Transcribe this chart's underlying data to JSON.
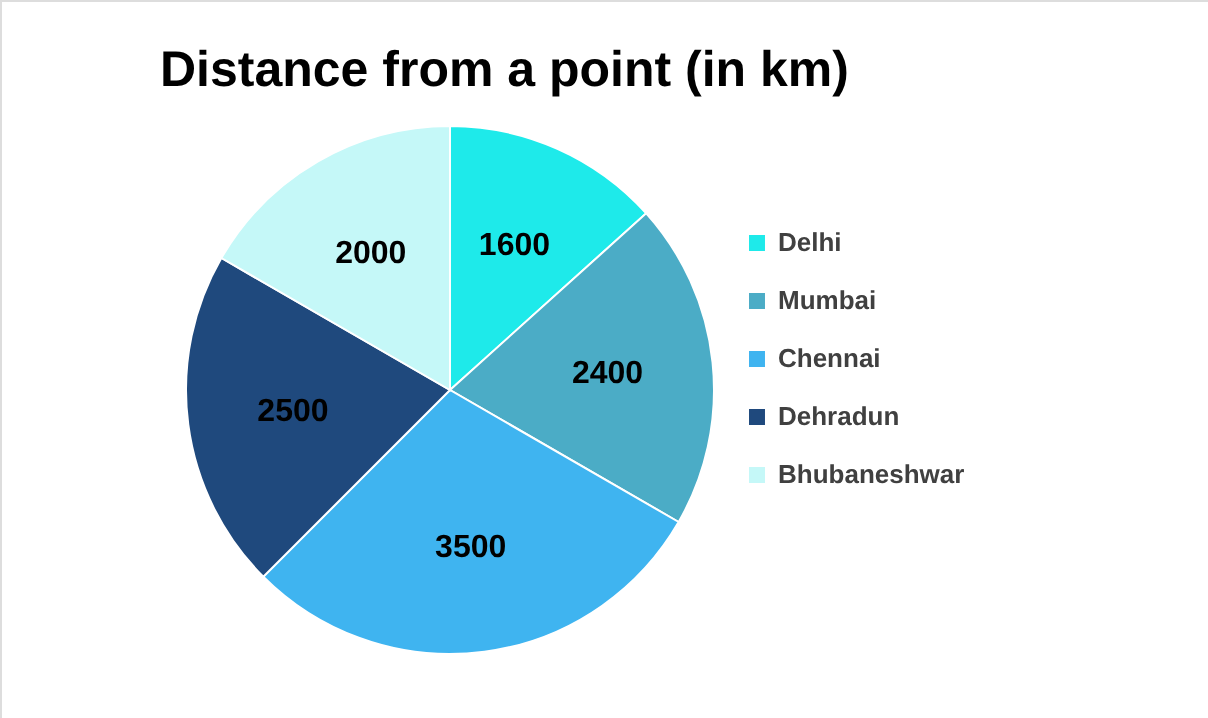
{
  "chart_data": {
    "type": "pie",
    "title": "Distance from a point (in km)",
    "categories": [
      "Delhi",
      "Mumbai",
      "Chennai",
      "Dehradun",
      "Bhubaneshwar"
    ],
    "values": [
      1600,
      2400,
      3500,
      2500,
      2000
    ],
    "colors": [
      "#1eeaea",
      "#4bacc6",
      "#3fb4f0",
      "#1f497d",
      "#c5f8f8"
    ],
    "data_labels": true,
    "legend": "right"
  }
}
